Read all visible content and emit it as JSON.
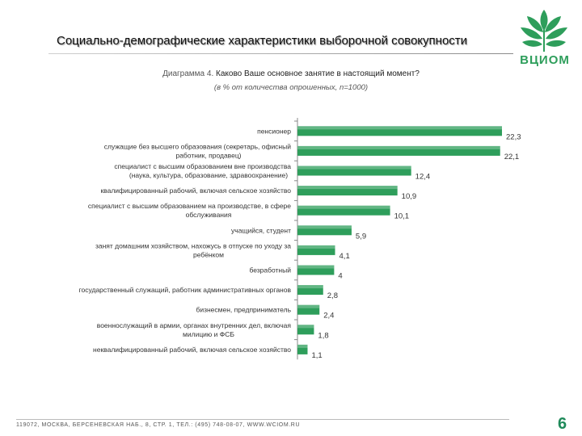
{
  "header": {
    "title": "Социально-демографические характеристики выборочной совокупности",
    "logo_text": "ВЦИОМ"
  },
  "diagram": {
    "prefix": "Диаграмма 4.",
    "question": "Каково Ваше основное занятие в настоящий момент?",
    "note": "(в % от количества опрошенных, n=1000)"
  },
  "chart_data": {
    "type": "bar",
    "orientation": "horizontal",
    "title": "Каково Ваше основное занятие в настоящий момент?",
    "unit": "%",
    "categories": [
      [
        "пенсионер"
      ],
      [
        "служащие без высшего образования (секретарь, офисный",
        "работник, продавец)"
      ],
      [
        "специалист с высшим образованием вне производства",
        "(наука, культура, образование, здравоохранение)"
      ],
      [
        "квалифицированный рабочий, включая сельское хозяйство"
      ],
      [
        "специалист с высшим образованием на производстве, в сфере",
        "обслуживания"
      ],
      [
        "учащийся, студент"
      ],
      [
        "занят домашним хозяйством, нахожусь в отпуске по уходу за",
        "ребёнком"
      ],
      [
        "безработный"
      ],
      [
        "государственный служащий, работник административных органов"
      ],
      [
        "бизнесмен, предприниматель"
      ],
      [
        "военнослужащий в армии, органах внутренних дел, включая",
        "милицию и ФСБ"
      ],
      [
        "неквалифицированный рабочий, включая сельское хозяйство"
      ]
    ],
    "values": [
      22.3,
      22.1,
      12.4,
      10.9,
      10.1,
      5.9,
      4.1,
      4,
      2.8,
      2.4,
      1.8,
      1.1
    ],
    "value_labels": [
      "22,3",
      "22,1",
      "12,4",
      "10,9",
      "10,1",
      "5,9",
      "4,1",
      "4",
      "2,8",
      "2,4",
      "1,8",
      "1,1"
    ],
    "xlim": [
      0,
      23
    ],
    "bar_color": "#2e9e5b"
  },
  "footer": {
    "address": "119072, МОСКВА, БЕРСЕНЕВСКАЯ НАБ., 8, СТР. 1, ТЕЛ.: (495) 748-08-07, WWW.WCIOM.RU",
    "page_number": "6"
  }
}
